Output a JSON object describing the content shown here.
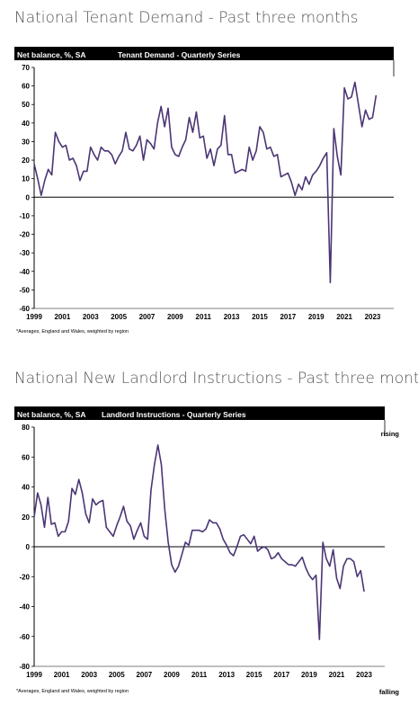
{
  "charts": [
    {
      "section_title": "National Tenant Demand - Past three months",
      "header_left": "Net balance, %, SA",
      "header_center": "Tenant Demand - Quarterly Series",
      "footnote": "*Averages, England and Wales, weighted by region",
      "right_top": "",
      "right_bottom": ""
    },
    {
      "section_title": "National New Landlord Instructions - Past three months",
      "header_left": "Net balance, %, SA",
      "header_center": "Landlord Instructions - Quarterly Series",
      "footnote": "*Averages, England and Wales, weighted by region",
      "right_top": "rising",
      "right_bottom": "falling"
    }
  ],
  "chart_data": [
    {
      "type": "line",
      "title": "Tenant Demand - Quarterly Series",
      "ylabel": "Net balance, %, SA",
      "ylim": [
        -60,
        70
      ],
      "yticks": [
        70,
        60,
        50,
        40,
        30,
        20,
        10,
        0,
        -10,
        -20,
        -30,
        -40,
        -50,
        -60
      ],
      "xlim": [
        1999,
        2024.5
      ],
      "xticks": [
        "1999",
        "2001",
        "2003",
        "2005",
        "2007",
        "2009",
        "2011",
        "2013",
        "2015",
        "2017",
        "2019",
        "2021",
        "2023"
      ],
      "line_color": "#4b3575",
      "series": [
        {
          "values": [
            18,
            10,
            1,
            9,
            15,
            12,
            35,
            30,
            27,
            28,
            20,
            21,
            17,
            9,
            14,
            14,
            27,
            23,
            20,
            27,
            25,
            25,
            23,
            18,
            22,
            25,
            35,
            26,
            25,
            28,
            33,
            20,
            31,
            29,
            26,
            40,
            49,
            38,
            48,
            27,
            23,
            22,
            27,
            31,
            43,
            35,
            46,
            32,
            33,
            21,
            26,
            17,
            26,
            28,
            44,
            23,
            23,
            13,
            14,
            15,
            14,
            27,
            20,
            25,
            38,
            35,
            26,
            27,
            22,
            23,
            11,
            12,
            13,
            8,
            1,
            7,
            4,
            11,
            7,
            12,
            14,
            17,
            21,
            24,
            -46,
            37,
            22,
            12,
            59,
            53,
            54,
            62,
            50,
            38,
            47,
            42,
            43,
            55
          ]
        }
      ]
    },
    {
      "type": "line",
      "title": "Landlord Instructions - Quarterly Series",
      "ylabel": "Net balance, %, SA",
      "ylim": [
        -80,
        80
      ],
      "yticks": [
        80,
        60,
        40,
        20,
        0,
        -20,
        -40,
        -60,
        -80
      ],
      "xlim": [
        1999,
        2024.5
      ],
      "xticks": [
        "1999",
        "2001",
        "2003",
        "2005",
        "2007",
        "2009",
        "2011",
        "2013",
        "2015",
        "2017",
        "2019",
        "2021",
        "2023"
      ],
      "line_color": "#4b3575",
      "series": [
        {
          "values": [
            20,
            36,
            28,
            13,
            33,
            15,
            16,
            7,
            10,
            10,
            17,
            39,
            35,
            45,
            36,
            22,
            16,
            32,
            28,
            30,
            31,
            13,
            10,
            7,
            14,
            20,
            27,
            17,
            14,
            5,
            11,
            16,
            7,
            5,
            38,
            55,
            68,
            55,
            25,
            3,
            -12,
            -17,
            -13,
            -5,
            3,
            1,
            11,
            11,
            11,
            10,
            12,
            18,
            16,
            16,
            12,
            5,
            1,
            -4,
            -6,
            0,
            7,
            8,
            5,
            2,
            7,
            -3,
            -1,
            0,
            -2,
            -8,
            -7,
            -4,
            -8,
            -10,
            -12,
            -12,
            -13,
            -10,
            -7,
            -14,
            -19,
            -22,
            -19,
            -62,
            3,
            -8,
            -13,
            -2,
            -21,
            -28,
            -13,
            -8,
            -8,
            -10,
            -20,
            -16,
            -30
          ]
        }
      ]
    }
  ]
}
